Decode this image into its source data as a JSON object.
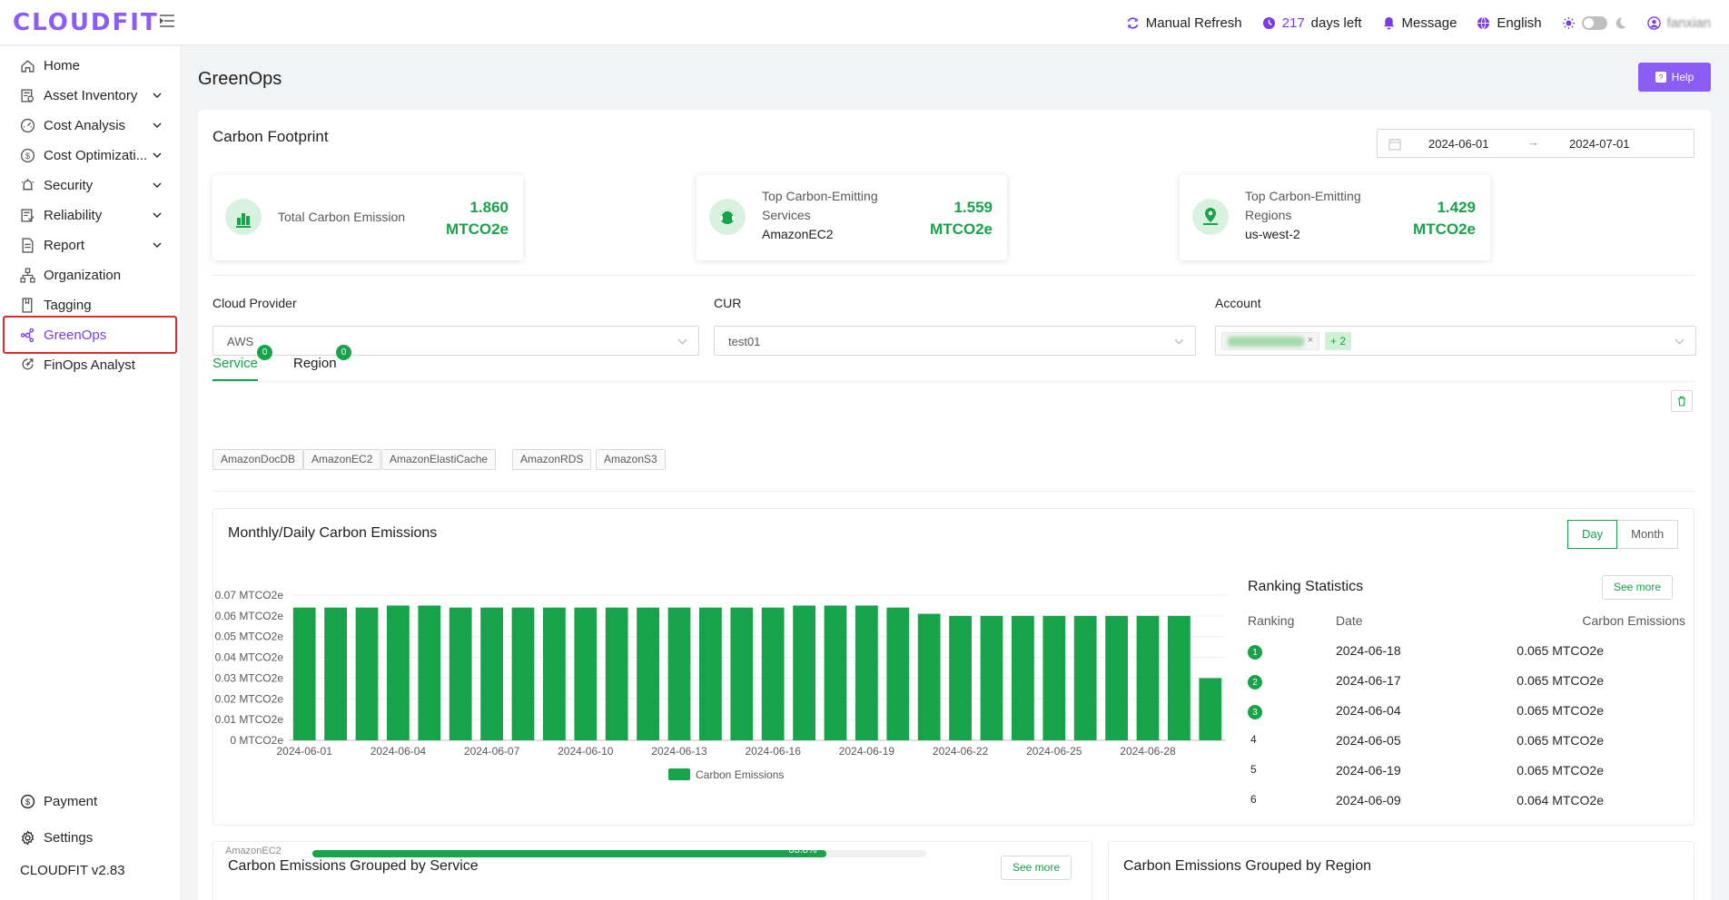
{
  "app": {
    "logo": "CLOUDFIT",
    "version": "CLOUDFIT v2.83"
  },
  "topbar": {
    "refresh": "Manual Refresh",
    "days_num": "217",
    "days_text": "days left",
    "message": "Message",
    "language": "English",
    "user": "fanxian"
  },
  "sidebar": {
    "items": [
      {
        "label": "Home",
        "icon": "home-icon",
        "expandable": false
      },
      {
        "label": "Asset Inventory",
        "icon": "asset-inventory-icon",
        "expandable": true
      },
      {
        "label": "Cost Analysis",
        "icon": "cost-analysis-icon",
        "expandable": true
      },
      {
        "label": "Cost Optimizati...",
        "icon": "dollar-circle-icon",
        "expandable": true
      },
      {
        "label": "Security",
        "icon": "security-icon",
        "expandable": true
      },
      {
        "label": "Reliability",
        "icon": "reliability-icon",
        "expandable": true
      },
      {
        "label": "Report",
        "icon": "report-icon",
        "expandable": true
      },
      {
        "label": "Organization",
        "icon": "organization-icon",
        "expandable": false
      },
      {
        "label": "Tagging",
        "icon": "tag-icon",
        "expandable": false
      },
      {
        "label": "GreenOps",
        "icon": "greenops-icon",
        "expandable": false,
        "active": true
      },
      {
        "label": "FinOps Analyst",
        "icon": "finops-analyst-icon",
        "expandable": false
      }
    ],
    "bottom": [
      {
        "label": "Payment",
        "icon": "payment-icon"
      },
      {
        "label": "Settings",
        "icon": "gear-icon"
      }
    ]
  },
  "page": {
    "title": "GreenOps",
    "help": "Help"
  },
  "footprint": {
    "title": "Carbon Footprint",
    "date_start": "2024-06-01",
    "date_end": "2024-07-01",
    "stats": [
      {
        "label_lines": [
          "Total Carbon Emission"
        ],
        "sub": "",
        "value": "1.860",
        "unit": "MTCO2e",
        "icon": "bar-chart-icon"
      },
      {
        "label_lines": [
          "Top Carbon-Emitting",
          "Services"
        ],
        "sub": "AmazonEC2",
        "value": "1.559",
        "unit": "MTCO2e",
        "icon": "headset-icon"
      },
      {
        "label_lines": [
          "Top Carbon-Emitting",
          "Regions"
        ],
        "sub": "us-west-2",
        "value": "1.429",
        "unit": "MTCO2e",
        "icon": "location-icon"
      }
    ]
  },
  "filters": {
    "provider_label": "Cloud Provider",
    "provider_value": "AWS",
    "cur_label": "CUR",
    "cur_value": "test01",
    "account_label": "Account",
    "account_more": "+ 2"
  },
  "tabs": [
    {
      "label": "Service",
      "badge": "0",
      "active": true
    },
    {
      "label": "Region",
      "badge": "0",
      "active": false
    }
  ],
  "service_tags": [
    "AmazonDocDB",
    "AmazonEC2",
    "AmazonElastiCache",
    "AmazonRDS",
    "AmazonS3"
  ],
  "emissions": {
    "title": "Monthly/Daily Carbon Emissions",
    "toggle": {
      "day": "Day",
      "month": "Month",
      "selected": "Day"
    }
  },
  "colors": {
    "accent": "#16a34a",
    "brand": "#8b5cf6",
    "highlight": "#e0282e"
  },
  "chart_data": {
    "type": "bar",
    "title": "",
    "x": [
      "2024-06-01",
      "2024-06-02",
      "2024-06-03",
      "2024-06-04",
      "2024-06-05",
      "2024-06-06",
      "2024-06-07",
      "2024-06-08",
      "2024-06-09",
      "2024-06-10",
      "2024-06-11",
      "2024-06-12",
      "2024-06-13",
      "2024-06-14",
      "2024-06-15",
      "2024-06-16",
      "2024-06-17",
      "2024-06-18",
      "2024-06-19",
      "2024-06-20",
      "2024-06-21",
      "2024-06-22",
      "2024-06-23",
      "2024-06-24",
      "2024-06-25",
      "2024-06-26",
      "2024-06-27",
      "2024-06-28",
      "2024-06-29",
      "2024-06-30"
    ],
    "xtick_labels": [
      "2024-06-01",
      "2024-06-04",
      "2024-06-07",
      "2024-06-10",
      "2024-06-13",
      "2024-06-16",
      "2024-06-19",
      "2024-06-22",
      "2024-06-25",
      "2024-06-28"
    ],
    "series": [
      {
        "name": "Carbon Emissions",
        "values": [
          0.064,
          0.064,
          0.064,
          0.065,
          0.065,
          0.064,
          0.064,
          0.064,
          0.064,
          0.064,
          0.064,
          0.064,
          0.064,
          0.064,
          0.064,
          0.064,
          0.065,
          0.065,
          0.065,
          0.064,
          0.061,
          0.06,
          0.06,
          0.06,
          0.06,
          0.06,
          0.06,
          0.06,
          0.06,
          0.03
        ]
      }
    ],
    "ylim": [
      0,
      0.07
    ],
    "yticks": [
      "0 MTCO2e",
      "0.01 MTCO2e",
      "0.02 MTCO2e",
      "0.03 MTCO2e",
      "0.04 MTCO2e",
      "0.05 MTCO2e",
      "0.06 MTCO2e",
      "0.07 MTCO2e"
    ],
    "legend": "bottom",
    "grid": true,
    "color": "#16a34a"
  },
  "ranking": {
    "title": "Ranking Statistics",
    "see_more": "See more",
    "headers": [
      "Ranking",
      "Date",
      "Carbon Emissions"
    ],
    "rows": [
      {
        "rank": "1",
        "date": "2024-06-18",
        "value": "0.065 MTCO2e"
      },
      {
        "rank": "2",
        "date": "2024-06-17",
        "value": "0.065 MTCO2e"
      },
      {
        "rank": "3",
        "date": "2024-06-04",
        "value": "0.065 MTCO2e"
      },
      {
        "rank": "4",
        "date": "2024-06-05",
        "value": "0.065 MTCO2e"
      },
      {
        "rank": "5",
        "date": "2024-06-19",
        "value": "0.065 MTCO2e"
      },
      {
        "rank": "6",
        "date": "2024-06-09",
        "value": "0.064 MTCO2e"
      }
    ]
  },
  "grouped": {
    "service_title": "Carbon Emissions Grouped by Service",
    "service_see_more": "See more",
    "region_title": "Carbon Emissions Grouped by Region",
    "first_row": {
      "label": "AmazonEC2",
      "percent": "83.8%",
      "fraction": 0.838
    }
  }
}
